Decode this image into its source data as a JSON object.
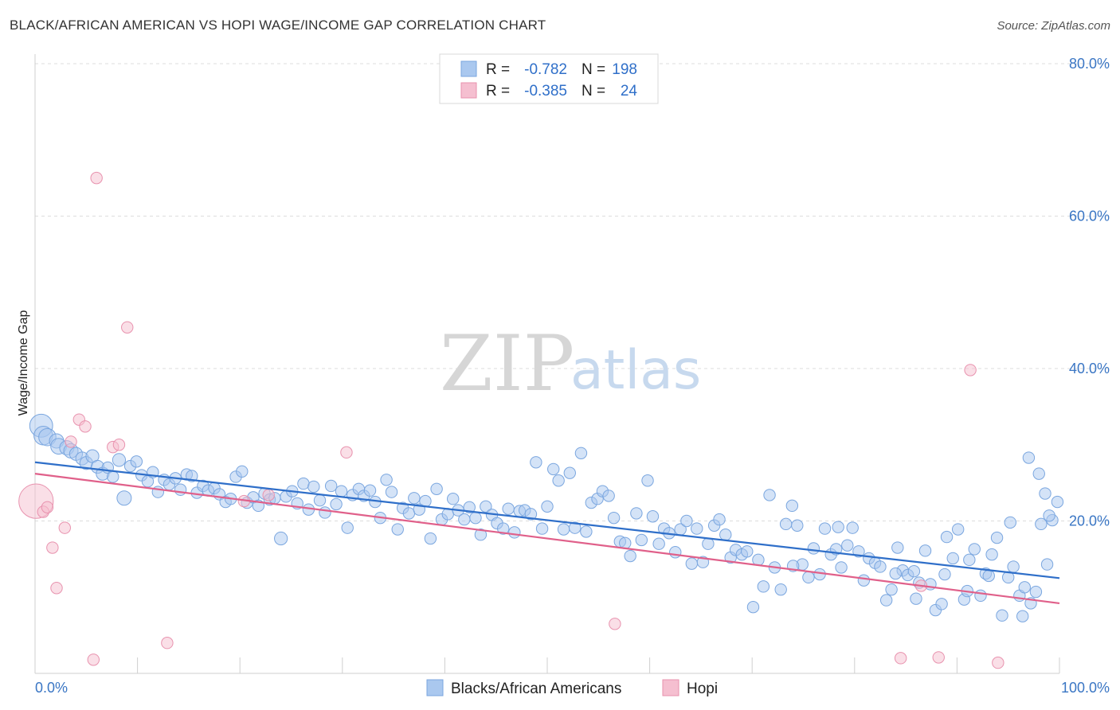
{
  "title": "BLACK/AFRICAN AMERICAN VS HOPI WAGE/INCOME GAP CORRELATION CHART",
  "source": "Source: ZipAtlas.com",
  "watermark": {
    "zip": "ZIP",
    "atlas": "atlas"
  },
  "colors": {
    "blue_fill": "#aac8ef",
    "blue_stroke": "#7aa6df",
    "blue_line": "#2f6fc9",
    "pink_fill": "#f5bfd0",
    "pink_stroke": "#e892ae",
    "pink_line": "#e0608a",
    "tick_text": "#3a76c4",
    "grid": "#dddddd"
  },
  "legend": {
    "rows": [
      {
        "r_label": "R = ",
        "r_value": "-0.782",
        "n_label": "N = ",
        "n_value": "198",
        "color": "blue"
      },
      {
        "r_label": "R = ",
        "r_value": "-0.385",
        "n_label": "N = ",
        "n_value": "24",
        "color": "pink"
      }
    ]
  },
  "bottom_legend": [
    "Blacks/African Americans",
    "Hopi"
  ],
  "chart_data": {
    "type": "scatter",
    "title": "BLACK/AFRICAN AMERICAN VS HOPI WAGE/INCOME GAP CORRELATION CHART",
    "xlabel": "",
    "ylabel": "Wage/Income Gap",
    "xlim": [
      0,
      100
    ],
    "ylim": [
      0,
      80
    ],
    "x_tick_labels": [
      "0.0%",
      "100.0%"
    ],
    "y_ticks": [
      20,
      40,
      60,
      80
    ],
    "y_tick_labels": [
      "20.0%",
      "40.0%",
      "60.0%",
      "80.0%"
    ],
    "grid": "horizontal dashed",
    "legend_position": "top-center",
    "series": [
      {
        "name": "Blacks/African Americans",
        "color": "#aac8ef",
        "trend": {
          "x": [
            0,
            100
          ],
          "y": [
            27.7,
            12.5
          ]
        },
        "points": [
          [
            0.6,
            32.5,
            1.6
          ],
          [
            0.8,
            31.2,
            1.3
          ],
          [
            1.2,
            31.0,
            1.2
          ],
          [
            2.1,
            30.5,
            1.0
          ],
          [
            2.3,
            29.8,
            1.1
          ],
          [
            3.1,
            29.6,
            1.0
          ],
          [
            3.5,
            29.2,
            1.0
          ],
          [
            4.0,
            28.8,
            0.9
          ],
          [
            4.6,
            28.2,
            0.9
          ],
          [
            5.0,
            27.6,
            0.9
          ],
          [
            5.6,
            28.5,
            0.9
          ],
          [
            6.1,
            27.1,
            0.9
          ],
          [
            6.6,
            26.2,
            0.9
          ],
          [
            7.1,
            27.0,
            0.8
          ],
          [
            7.6,
            25.8,
            0.8
          ],
          [
            8.2,
            28.0,
            0.9
          ],
          [
            8.7,
            23.0,
            1.0
          ],
          [
            9.3,
            27.2,
            0.8
          ],
          [
            9.9,
            27.8,
            0.8
          ],
          [
            10.4,
            26.0,
            0.8
          ],
          [
            11.0,
            25.2,
            0.8
          ],
          [
            11.5,
            26.4,
            0.8
          ],
          [
            12.0,
            23.8,
            0.8
          ],
          [
            12.6,
            25.4,
            0.8
          ],
          [
            13.1,
            24.8,
            0.8
          ],
          [
            13.7,
            25.6,
            0.8
          ],
          [
            14.2,
            24.1,
            0.8
          ],
          [
            14.8,
            26.1,
            0.8
          ],
          [
            15.3,
            25.9,
            0.8
          ],
          [
            15.8,
            23.7,
            0.8
          ],
          [
            16.4,
            24.6,
            0.8
          ],
          [
            16.9,
            24.0,
            0.8
          ],
          [
            17.5,
            24.3,
            0.8
          ],
          [
            18.0,
            23.5,
            0.8
          ],
          [
            18.6,
            22.5,
            0.8
          ],
          [
            19.1,
            22.9,
            0.8
          ],
          [
            19.6,
            25.8,
            0.8
          ],
          [
            20.2,
            26.5,
            0.8
          ],
          [
            20.7,
            22.4,
            0.8
          ],
          [
            21.3,
            23.1,
            0.8
          ],
          [
            21.8,
            22.0,
            0.8
          ],
          [
            22.4,
            23.6,
            0.8
          ],
          [
            22.9,
            22.8,
            0.8
          ],
          [
            23.4,
            23.0,
            0.8
          ],
          [
            24.0,
            17.7,
            0.9
          ],
          [
            24.5,
            23.2,
            0.8
          ],
          [
            25.1,
            23.9,
            0.8
          ],
          [
            25.6,
            22.3,
            0.8
          ],
          [
            26.2,
            24.9,
            0.8
          ],
          [
            26.7,
            21.5,
            0.8
          ],
          [
            27.2,
            24.5,
            0.8
          ],
          [
            27.8,
            22.7,
            0.8
          ],
          [
            28.3,
            21.1,
            0.8
          ],
          [
            28.9,
            24.6,
            0.8
          ],
          [
            29.4,
            22.2,
            0.8
          ],
          [
            29.9,
            23.9,
            0.8
          ],
          [
            30.5,
            19.1,
            0.8
          ],
          [
            31.0,
            23.4,
            0.8
          ],
          [
            31.6,
            24.2,
            0.8
          ],
          [
            32.1,
            23.3,
            0.8
          ],
          [
            32.7,
            24.0,
            0.8
          ],
          [
            33.2,
            22.5,
            0.8
          ],
          [
            33.7,
            20.4,
            0.8
          ],
          [
            34.3,
            25.4,
            0.8
          ],
          [
            34.8,
            23.8,
            0.8
          ],
          [
            35.4,
            18.9,
            0.8
          ],
          [
            35.9,
            21.7,
            0.8
          ],
          [
            36.5,
            21.0,
            0.8
          ],
          [
            37.0,
            23.0,
            0.8
          ],
          [
            37.5,
            21.5,
            0.8
          ],
          [
            38.1,
            22.6,
            0.8
          ],
          [
            38.6,
            17.7,
            0.8
          ],
          [
            39.2,
            24.2,
            0.8
          ],
          [
            39.7,
            20.2,
            0.8
          ],
          [
            40.3,
            20.9,
            0.8
          ],
          [
            40.8,
            22.9,
            0.8
          ],
          [
            41.3,
            21.4,
            0.8
          ],
          [
            41.9,
            20.2,
            0.8
          ],
          [
            42.4,
            21.8,
            0.8
          ],
          [
            43.0,
            20.4,
            0.8
          ],
          [
            43.5,
            18.2,
            0.8
          ],
          [
            44.0,
            21.9,
            0.8
          ],
          [
            44.6,
            20.8,
            0.8
          ],
          [
            45.1,
            19.7,
            0.8
          ],
          [
            45.7,
            19.0,
            0.8
          ],
          [
            46.2,
            21.6,
            0.8
          ],
          [
            46.8,
            18.5,
            0.8
          ],
          [
            47.3,
            21.3,
            0.8
          ],
          [
            47.8,
            21.4,
            0.8
          ],
          [
            48.4,
            20.9,
            0.8
          ],
          [
            48.9,
            27.7,
            0.8
          ],
          [
            49.5,
            19.0,
            0.8
          ],
          [
            50.0,
            21.9,
            0.8
          ],
          [
            50.6,
            26.8,
            0.8
          ],
          [
            51.1,
            25.3,
            0.8
          ],
          [
            51.6,
            18.9,
            0.8
          ],
          [
            52.2,
            26.3,
            0.8
          ],
          [
            52.7,
            19.1,
            0.8
          ],
          [
            53.3,
            28.9,
            0.8
          ],
          [
            53.8,
            18.6,
            0.8
          ],
          [
            54.3,
            22.4,
            0.8
          ],
          [
            54.9,
            22.9,
            0.8
          ],
          [
            55.4,
            23.9,
            0.8
          ],
          [
            56.0,
            23.3,
            0.8
          ],
          [
            56.5,
            20.4,
            0.8
          ],
          [
            57.1,
            17.3,
            0.8
          ],
          [
            57.6,
            17.1,
            0.8
          ],
          [
            58.1,
            15.4,
            0.8
          ],
          [
            58.7,
            21.0,
            0.8
          ],
          [
            59.2,
            17.5,
            0.8
          ],
          [
            59.8,
            25.3,
            0.8
          ],
          [
            60.3,
            20.6,
            0.8
          ],
          [
            60.9,
            17.0,
            0.8
          ],
          [
            61.4,
            19.0,
            0.8
          ],
          [
            61.9,
            18.4,
            0.8
          ],
          [
            62.5,
            15.9,
            0.8
          ],
          [
            63.0,
            18.9,
            0.8
          ],
          [
            63.6,
            20.0,
            0.8
          ],
          [
            64.1,
            14.4,
            0.8
          ],
          [
            64.6,
            19.0,
            0.8
          ],
          [
            65.2,
            14.6,
            0.8
          ],
          [
            65.7,
            17.0,
            0.8
          ],
          [
            66.3,
            19.4,
            0.8
          ],
          [
            66.8,
            20.2,
            0.8
          ],
          [
            67.4,
            18.2,
            0.8
          ],
          [
            67.9,
            15.2,
            0.8
          ],
          [
            68.4,
            16.2,
            0.8
          ],
          [
            69.0,
            15.6,
            0.8
          ],
          [
            69.5,
            16.0,
            0.8
          ],
          [
            70.1,
            8.7,
            0.8
          ],
          [
            70.6,
            14.9,
            0.8
          ],
          [
            71.1,
            11.4,
            0.8
          ],
          [
            71.7,
            23.4,
            0.8
          ],
          [
            72.2,
            13.9,
            0.8
          ],
          [
            72.8,
            11.0,
            0.8
          ],
          [
            73.3,
            19.6,
            0.8
          ],
          [
            73.9,
            22.0,
            0.8
          ],
          [
            74.4,
            19.4,
            0.8
          ],
          [
            74.9,
            14.3,
            0.8
          ],
          [
            75.5,
            12.6,
            0.8
          ],
          [
            76.0,
            16.4,
            0.8
          ],
          [
            76.6,
            13.0,
            0.8
          ],
          [
            77.1,
            19.0,
            0.8
          ],
          [
            77.7,
            15.6,
            0.8
          ],
          [
            78.2,
            16.3,
            0.8
          ],
          [
            78.7,
            13.9,
            0.8
          ],
          [
            79.3,
            16.8,
            0.8
          ],
          [
            79.8,
            19.1,
            0.8
          ],
          [
            80.4,
            16.0,
            0.8
          ],
          [
            80.9,
            12.2,
            0.8
          ],
          [
            81.4,
            15.1,
            0.8
          ],
          [
            82.0,
            14.5,
            0.8
          ],
          [
            82.5,
            14.0,
            0.8
          ],
          [
            83.1,
            9.6,
            0.8
          ],
          [
            83.6,
            11.0,
            0.8
          ],
          [
            84.2,
            16.5,
            0.8
          ],
          [
            84.7,
            13.5,
            0.8
          ],
          [
            85.2,
            12.9,
            0.8
          ],
          [
            85.8,
            13.4,
            0.8
          ],
          [
            86.3,
            11.9,
            0.8
          ],
          [
            86.9,
            16.1,
            0.8
          ],
          [
            87.4,
            11.7,
            0.8
          ],
          [
            87.9,
            8.3,
            0.8
          ],
          [
            88.5,
            9.1,
            0.8
          ],
          [
            89.0,
            17.9,
            0.8
          ],
          [
            89.6,
            15.1,
            0.8
          ],
          [
            90.1,
            18.9,
            0.8
          ],
          [
            90.7,
            9.7,
            0.8
          ],
          [
            91.2,
            14.9,
            0.8
          ],
          [
            91.7,
            16.3,
            0.8
          ],
          [
            92.3,
            10.2,
            0.8
          ],
          [
            92.8,
            13.1,
            0.8
          ],
          [
            93.4,
            15.6,
            0.8
          ],
          [
            93.9,
            17.8,
            0.8
          ],
          [
            94.4,
            7.6,
            0.8
          ],
          [
            95.0,
            12.6,
            0.8
          ],
          [
            95.5,
            14.0,
            0.8
          ],
          [
            96.1,
            10.2,
            0.8
          ],
          [
            96.6,
            11.3,
            0.8
          ],
          [
            97.2,
            9.2,
            0.8
          ],
          [
            97.7,
            10.7,
            0.8
          ],
          [
            98.2,
            19.6,
            0.8
          ],
          [
            98.8,
            14.3,
            0.8
          ],
          [
            99.3,
            20.1,
            0.8
          ],
          [
            99.8,
            22.5,
            0.8
          ],
          [
            96.4,
            7.5,
            0.8
          ],
          [
            97.0,
            28.3,
            0.8
          ],
          [
            98.0,
            26.2,
            0.8
          ],
          [
            98.6,
            23.6,
            0.8
          ],
          [
            99.0,
            20.7,
            0.8
          ],
          [
            95.2,
            19.8,
            0.8
          ],
          [
            93.1,
            12.8,
            0.8
          ],
          [
            91.0,
            10.8,
            0.8
          ],
          [
            88.8,
            13.0,
            0.8
          ],
          [
            86.0,
            9.8,
            0.8
          ],
          [
            84.0,
            13.1,
            0.8
          ],
          [
            78.4,
            19.2,
            0.8
          ],
          [
            74.0,
            14.1,
            0.8
          ]
        ]
      },
      {
        "name": "Hopi",
        "color": "#f5bfd0",
        "trend": {
          "x": [
            0,
            100
          ],
          "y": [
            26.2,
            9.2
          ]
        },
        "points": [
          [
            0.1,
            22.6,
            2.4
          ],
          [
            0.8,
            21.2,
            0.8
          ],
          [
            1.2,
            21.8,
            0.8
          ],
          [
            1.7,
            16.5,
            0.8
          ],
          [
            2.1,
            11.2,
            0.8
          ],
          [
            2.9,
            19.1,
            0.8
          ],
          [
            3.5,
            30.4,
            0.8
          ],
          [
            4.3,
            33.3,
            0.8
          ],
          [
            4.9,
            32.4,
            0.8
          ],
          [
            5.7,
            1.8,
            0.8
          ],
          [
            6.0,
            65.0,
            0.8
          ],
          [
            7.6,
            29.7,
            0.8
          ],
          [
            8.2,
            30.0,
            0.8
          ],
          [
            9.0,
            45.4,
            0.8
          ],
          [
            12.9,
            4.0,
            0.8
          ],
          [
            20.4,
            22.6,
            0.8
          ],
          [
            22.8,
            23.4,
            0.8
          ],
          [
            30.4,
            29.0,
            0.8
          ],
          [
            56.6,
            6.5,
            0.8
          ],
          [
            84.5,
            2.0,
            0.8
          ],
          [
            86.5,
            11.5,
            0.8
          ],
          [
            88.2,
            2.1,
            0.8
          ],
          [
            91.3,
            39.8,
            0.8
          ],
          [
            94.0,
            1.4,
            0.8
          ]
        ]
      }
    ]
  }
}
